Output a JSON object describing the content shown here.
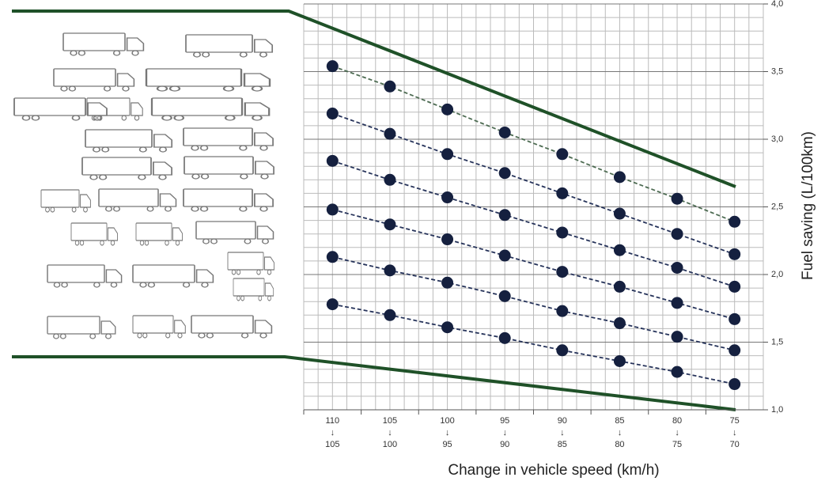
{
  "chart_data": {
    "type": "line",
    "x_label": "Change in vehicle speed (km/h)",
    "y_label": "Fuel saving (L/100km)",
    "categories": [
      [
        "110",
        "↓",
        "105"
      ],
      [
        "105",
        "↓",
        "100"
      ],
      [
        "100",
        "↓",
        "95"
      ],
      [
        "95",
        "↓",
        "90"
      ],
      [
        "90",
        "↓",
        "85"
      ],
      [
        "85",
        "↓",
        "80"
      ],
      [
        "80",
        "↓",
        "75"
      ],
      [
        "75",
        "↓",
        "70"
      ]
    ],
    "ylim": [
      1.0,
      4.0
    ],
    "yticks": [
      {
        "value": 1.0,
        "label": "1,0"
      },
      {
        "value": 1.5,
        "label": "1,5"
      },
      {
        "value": 2.0,
        "label": "2,0"
      },
      {
        "value": 2.5,
        "label": "2,5"
      },
      {
        "value": 3.0,
        "label": "3,0"
      },
      {
        "value": 3.5,
        "label": "3,5"
      },
      {
        "value": 4.0,
        "label": "4,0"
      }
    ],
    "grid": true,
    "marker_color": "#15203f",
    "series": [
      {
        "color": "#4d6b52",
        "values": [
          3.54,
          3.39,
          3.22,
          3.05,
          2.89,
          2.72,
          2.56,
          2.39
        ]
      },
      {
        "color": "#26335a",
        "values": [
          3.19,
          3.04,
          2.89,
          2.75,
          2.6,
          2.45,
          2.3,
          2.15
        ]
      },
      {
        "color": "#26335a",
        "values": [
          2.84,
          2.7,
          2.57,
          2.44,
          2.31,
          2.18,
          2.05,
          1.91
        ]
      },
      {
        "color": "#26335a",
        "values": [
          2.48,
          2.37,
          2.26,
          2.14,
          2.02,
          1.91,
          1.79,
          1.67
        ]
      },
      {
        "color": "#26335a",
        "values": [
          2.13,
          2.03,
          1.94,
          1.84,
          1.73,
          1.64,
          1.54,
          1.44
        ]
      },
      {
        "color": "#26335a",
        "values": [
          1.78,
          1.7,
          1.61,
          1.53,
          1.44,
          1.36,
          1.28,
          1.19
        ]
      }
    ]
  }
}
